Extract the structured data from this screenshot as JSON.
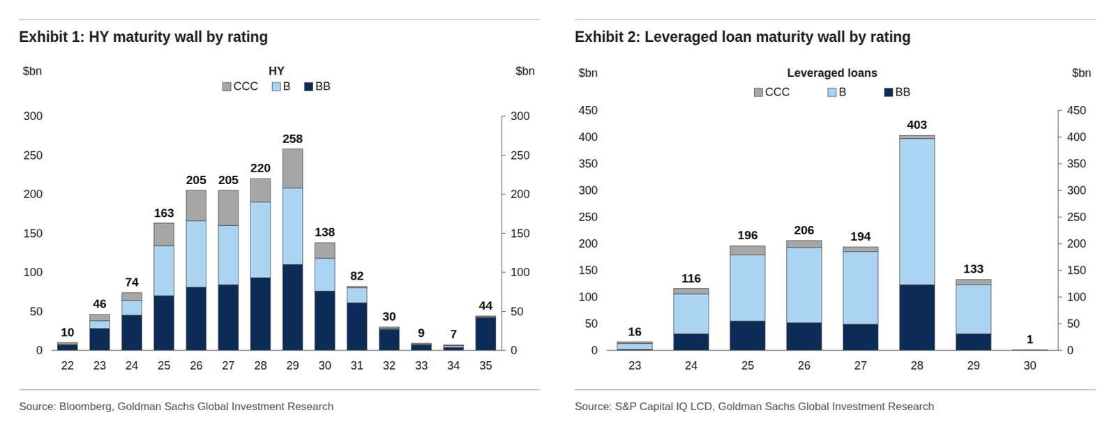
{
  "chart_data": [
    {
      "type": "bar",
      "title": "Exhibit 1: HY maturity wall by rating",
      "subtitle": "HY",
      "source": "Source: Bloomberg, Goldman Sachs Global Investment Research",
      "y_label": "$bn",
      "y2_label": "$bn",
      "categories": [
        "22",
        "23",
        "24",
        "25",
        "26",
        "27",
        "28",
        "29",
        "30",
        "31",
        "32",
        "33",
        "34",
        "35"
      ],
      "series": [
        {
          "name": "BB",
          "color": "#0c2b57",
          "values": [
            7,
            28,
            45,
            70,
            81,
            84,
            93,
            110,
            76,
            61,
            27,
            7,
            4,
            42
          ]
        },
        {
          "name": "B",
          "color": "#abd3f2",
          "values": [
            1,
            10,
            19,
            64,
            85,
            76,
            97,
            98,
            42,
            19,
            1,
            1,
            2,
            1
          ]
        },
        {
          "name": "CCC",
          "color": "#a6a6a6",
          "values": [
            2,
            8,
            10,
            29,
            39,
            45,
            30,
            50,
            20,
            2,
            2,
            1,
            1,
            1
          ]
        }
      ],
      "totals": [
        10,
        46,
        74,
        163,
        205,
        205,
        220,
        258,
        138,
        82,
        30,
        9,
        7,
        44
      ],
      "ylim": [
        0,
        300
      ],
      "yticks": [
        0,
        50,
        100,
        150,
        200,
        250,
        300
      ],
      "y2lim": [
        0,
        300
      ],
      "y2ticks": [
        0,
        50,
        100,
        150,
        200,
        250,
        300
      ],
      "stacked": true,
      "data_labels": true,
      "legend": "top",
      "grid": false
    },
    {
      "type": "bar",
      "title": "Exhibit 2: Leveraged loan maturity wall by rating",
      "subtitle": "Leveraged loans",
      "source": "Source: S&P Capital IQ LCD, Goldman Sachs Global Investment Research",
      "y_label": "$bn",
      "y2_label": "$bn",
      "categories": [
        "23",
        "24",
        "25",
        "26",
        "27",
        "28",
        "29",
        "30"
      ],
      "series": [
        {
          "name": "BB",
          "color": "#0c2b57",
          "values": [
            2,
            31,
            55,
            52,
            49,
            123,
            31,
            0.3
          ]
        },
        {
          "name": "B",
          "color": "#abd3f2",
          "values": [
            11,
            75,
            124,
            141,
            136,
            274,
            92,
            0.5
          ]
        },
        {
          "name": "CCC",
          "color": "#a6a6a6",
          "values": [
            3,
            10,
            17,
            13,
            9,
            6,
            10,
            0.2
          ]
        }
      ],
      "totals": [
        16,
        116,
        196,
        206,
        194,
        403,
        133,
        1
      ],
      "ylim": [
        0,
        450
      ],
      "yticks": [
        0,
        50,
        100,
        150,
        200,
        250,
        300,
        350,
        400,
        450
      ],
      "y2lim": [
        0,
        450
      ],
      "y2ticks": [
        0,
        50,
        100,
        150,
        200,
        250,
        300,
        350,
        400,
        450
      ],
      "stacked": true,
      "data_labels": true,
      "legend": "top",
      "grid": false
    }
  ]
}
